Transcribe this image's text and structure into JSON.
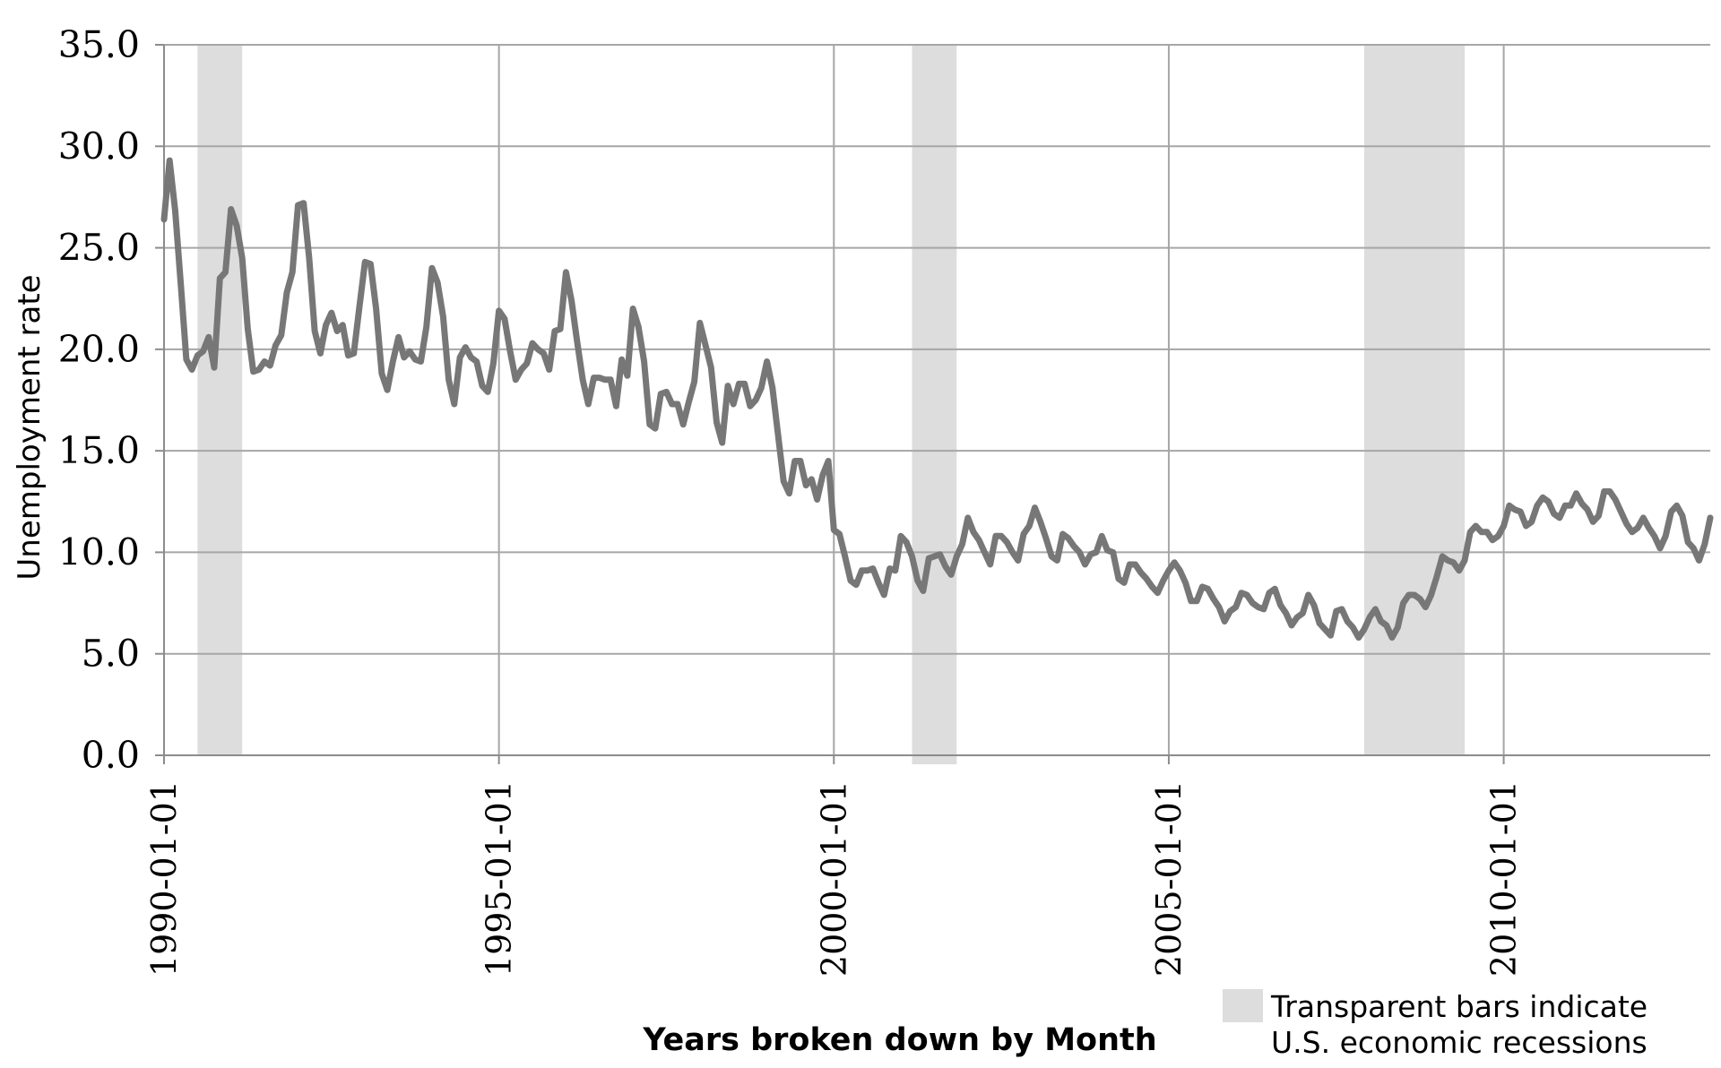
{
  "chart_data": {
    "type": "line",
    "title": "",
    "xlabel": "Years broken down by Month",
    "ylabel": "Unemployment rate",
    "ylim": [
      0,
      35
    ],
    "xlim": [
      "1990-01-01",
      "2013-02-01"
    ],
    "y_ticks": [
      "0.0",
      "5.0",
      "10.0",
      "15.0",
      "20.0",
      "25.0",
      "30.0",
      "35.0"
    ],
    "x_ticks": [
      "1990-01-01",
      "1995-01-01",
      "2000-01-01",
      "2005-01-01",
      "2010-01-01"
    ],
    "grid": true,
    "line_color": "#777777",
    "recession_color": "#dddddd",
    "legend": {
      "position": "bottom-right",
      "line1": "Transparent bars indicate",
      "line2": "U.S. economic recessions"
    },
    "recessions": [
      {
        "start": "1990-07-01",
        "end": "1991-03-01"
      },
      {
        "start": "2001-03-01",
        "end": "2001-11-01"
      },
      {
        "start": "2007-12-01",
        "end": "2009-06-01"
      }
    ],
    "series": [
      {
        "start": "1990-01-01",
        "frequency": "monthly",
        "values": [
          26.4,
          29.3,
          26.8,
          23.2,
          19.5,
          19.0,
          19.7,
          19.9,
          20.6,
          19.1,
          23.5,
          23.8,
          26.9,
          26.1,
          24.5,
          21.0,
          18.9,
          19.0,
          19.4,
          19.2,
          20.2,
          20.7,
          22.8,
          23.8,
          27.1,
          27.2,
          24.5,
          20.9,
          19.8,
          21.2,
          21.8,
          20.9,
          21.2,
          19.7,
          19.8,
          22.1,
          24.3,
          24.2,
          22.0,
          18.8,
          18.0,
          19.4,
          20.6,
          19.6,
          19.9,
          19.5,
          19.4,
          21.1,
          24.0,
          23.3,
          21.6,
          18.5,
          17.3,
          19.6,
          20.1,
          19.6,
          19.4,
          18.2,
          17.9,
          19.3,
          21.9,
          21.5,
          19.9,
          18.5,
          19.0,
          19.3,
          20.3,
          20.0,
          19.8,
          19.0,
          20.9,
          21.0,
          23.8,
          22.4,
          20.4,
          18.5,
          17.3,
          18.6,
          18.6,
          18.5,
          18.5,
          17.2,
          19.5,
          18.7,
          22.0,
          21.1,
          19.4,
          16.3,
          16.1,
          17.8,
          17.9,
          17.3,
          17.3,
          16.3,
          17.4,
          18.4,
          21.3,
          20.2,
          19.1,
          16.4,
          15.4,
          18.2,
          17.3,
          18.3,
          18.3,
          17.2,
          17.5,
          18.1,
          19.4,
          18.1,
          15.8,
          13.5,
          12.9,
          14.5,
          14.5,
          13.3,
          13.6,
          12.6,
          13.8,
          14.5,
          11.1,
          10.9,
          9.8,
          8.6,
          8.4,
          9.1,
          9.1,
          9.2,
          8.5,
          7.9,
          9.2,
          9.1,
          10.8,
          10.5,
          9.8,
          8.6,
          8.1,
          9.7,
          9.8,
          9.9,
          9.3,
          8.9,
          9.8,
          10.4,
          11.7,
          11.0,
          10.6,
          10.0,
          9.4,
          10.8,
          10.8,
          10.5,
          10.0,
          9.6,
          10.9,
          11.3,
          12.2,
          11.5,
          10.7,
          9.8,
          9.6,
          10.9,
          10.7,
          10.3,
          10.0,
          9.4,
          9.9,
          10.0,
          10.8,
          10.1,
          10.0,
          8.7,
          8.5,
          9.4,
          9.4,
          9.0,
          8.7,
          8.3,
          8.0,
          8.6,
          9.1,
          9.5,
          9.1,
          8.5,
          7.6,
          7.6,
          8.3,
          8.2,
          7.7,
          7.3,
          6.6,
          7.1,
          7.3,
          8.0,
          7.9,
          7.5,
          7.3,
          7.2,
          8.0,
          8.2,
          7.4,
          7.0,
          6.4,
          6.8,
          7.0,
          7.9,
          7.4,
          6.5,
          6.2,
          5.9,
          7.1,
          7.2,
          6.6,
          6.3,
          5.8,
          6.2,
          6.8,
          7.2,
          6.6,
          6.4,
          5.8,
          6.3,
          7.5,
          7.9,
          7.9,
          7.7,
          7.3,
          7.9,
          8.8,
          9.8,
          9.6,
          9.5,
          9.1,
          9.6,
          11.0,
          11.3,
          11.0,
          11.0,
          10.6,
          10.8,
          11.3,
          12.3,
          12.1,
          12.0,
          11.3,
          11.5,
          12.3,
          12.7,
          12.5,
          11.9,
          11.7,
          12.3,
          12.3,
          12.9,
          12.4,
          12.1,
          11.5,
          11.8,
          13.0,
          13.0,
          12.6,
          12.0,
          11.4,
          11.0,
          11.2,
          11.7,
          11.2,
          10.8,
          10.2,
          10.8,
          12.0,
          12.3,
          11.8,
          10.5,
          10.2,
          9.6,
          10.4,
          11.7
        ]
      }
    ]
  }
}
